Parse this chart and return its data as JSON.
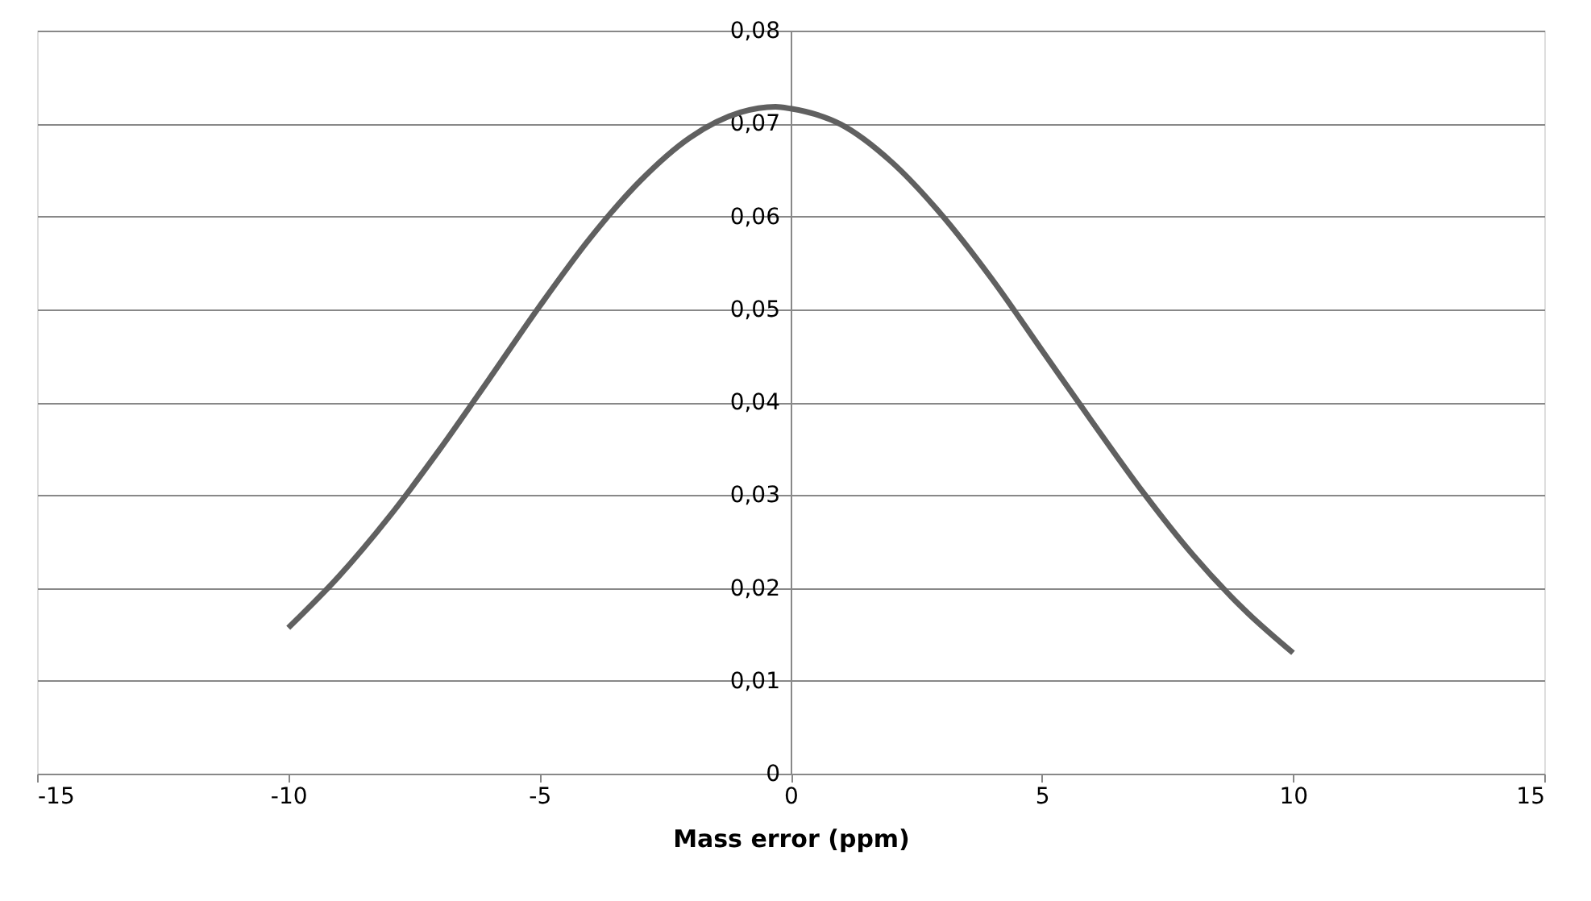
{
  "chart_data": {
    "type": "line",
    "xlabel": "Mass error (ppm)",
    "x": [
      -10,
      -9,
      -8,
      -7,
      -6,
      -5,
      -4,
      -3,
      -2,
      -1,
      -0.3,
      0,
      1,
      2,
      3,
      4,
      5,
      6,
      7,
      8,
      9,
      10
    ],
    "series": [
      {
        "color": "#606060",
        "values": [
          0.0157,
          0.0212,
          0.0276,
          0.0348,
          0.0425,
          0.0503,
          0.0576,
          0.0638,
          0.0685,
          0.0712,
          0.0718,
          0.0716,
          0.0699,
          0.0659,
          0.0602,
          0.0533,
          0.0456,
          0.0379,
          0.0304,
          0.0236,
          0.0178,
          0.013
        ]
      }
    ],
    "xlim": [
      -15,
      15
    ],
    "xticks": [
      -15,
      -10,
      -5,
      0,
      5,
      10,
      15
    ],
    "ylim": [
      0,
      0.08
    ],
    "yticks": [
      0,
      {
        "value": 0.01,
        "label": "0,01"
      },
      {
        "value": 0.02,
        "label": "0,02"
      },
      {
        "value": 0.03,
        "label": "0,03"
      },
      {
        "value": 0.04,
        "label": "0,04"
      },
      {
        "value": 0.05,
        "label": "0,05"
      },
      {
        "value": 0.06,
        "label": "0,06"
      },
      {
        "value": 0.07,
        "label": "0,07"
      },
      {
        "value": 0.08,
        "label": "0,08"
      }
    ],
    "grid": "y",
    "marker": "none",
    "line_style": "solid"
  }
}
